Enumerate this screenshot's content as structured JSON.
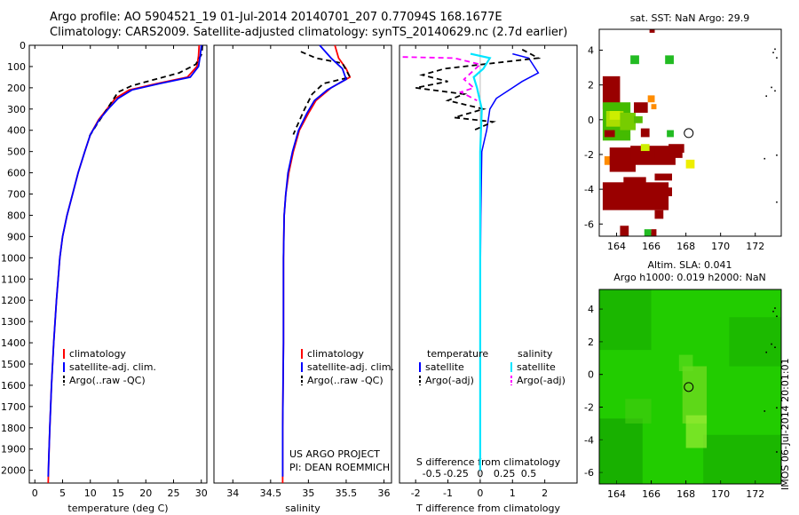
{
  "header": {
    "title_line1": "Argo profile: AO 5904521_19 01-Jul-2014 20140701_207 0.77094S 168.1677E",
    "title_line2": "Climatology: CARS2009. Satellite-adjusted climatology: synTS_20140629.nc (2.7d earlier)"
  },
  "colors": {
    "climatology": "#ff0000",
    "satellite": "#0000ff",
    "argo": "#000000",
    "satellite_salinity": "#00e5ff",
    "argo_salinity": "#ff00ff",
    "sst_dark": "#990000",
    "sst_mid": "#ff8c00",
    "sst_light": "#ccee00",
    "sla_bg": "#22cc00"
  },
  "chart_data": [
    {
      "id": "temperature",
      "type": "line",
      "xlabel": "temperature (deg C)",
      "ylabel": "",
      "xlim": [
        -1,
        31
      ],
      "ylim": [
        2060,
        0
      ],
      "xticks": [
        "0",
        "5",
        "10",
        "15",
        "20",
        "25",
        "30"
      ],
      "xtick_values": [
        0,
        5,
        10,
        15,
        20,
        25,
        30
      ],
      "yticks": [
        "0",
        "100",
        "200",
        "300",
        "400",
        "500",
        "600",
        "700",
        "800",
        "900",
        "1000",
        "1100",
        "1200",
        "1300",
        "1400",
        "1500",
        "1600",
        "1700",
        "1800",
        "1900",
        "2000"
      ],
      "ytick_values": [
        0,
        100,
        200,
        300,
        400,
        500,
        600,
        700,
        800,
        900,
        1000,
        1100,
        1200,
        1300,
        1400,
        1500,
        1600,
        1700,
        1800,
        1900,
        2000
      ],
      "legend": [
        "climatology",
        "satellite-adj. clim.",
        "Argo(..raw -QC)"
      ],
      "series": [
        {
          "name": "climatology",
          "points": [
            [
              29.6,
              0
            ],
            [
              29.5,
              50
            ],
            [
              29.2,
              100
            ],
            [
              27.5,
              150
            ],
            [
              22,
              180
            ],
            [
              17,
              210
            ],
            [
              14.5,
              250
            ],
            [
              13,
              300
            ],
            [
              11.5,
              350
            ],
            [
              10,
              420
            ],
            [
              9,
              500
            ],
            [
              7.8,
              600
            ],
            [
              6.8,
              700
            ],
            [
              5.8,
              800
            ],
            [
              5,
              900
            ],
            [
              4.5,
              1000
            ],
            [
              3.9,
              1200
            ],
            [
              3.4,
              1400
            ],
            [
              3,
              1600
            ],
            [
              2.7,
              1800
            ],
            [
              2.5,
              1950
            ],
            [
              2.4,
              2060
            ]
          ]
        },
        {
          "name": "satellite-adj. clim.",
          "points": [
            [
              30,
              0
            ],
            [
              29.8,
              50
            ],
            [
              29.5,
              100
            ],
            [
              28,
              150
            ],
            [
              22.5,
              180
            ],
            [
              17.5,
              210
            ],
            [
              15,
              250
            ],
            [
              13.2,
              300
            ],
            [
              11.6,
              350
            ],
            [
              10,
              420
            ],
            [
              9,
              500
            ],
            [
              7.8,
              600
            ],
            [
              6.8,
              700
            ],
            [
              5.8,
              800
            ],
            [
              5,
              900
            ],
            [
              4.5,
              1000
            ],
            [
              3.9,
              1200
            ],
            [
              3.4,
              1400
            ],
            [
              3,
              1600
            ],
            [
              2.7,
              1800
            ],
            [
              2.5,
              1950
            ],
            [
              2.4,
              2030
            ]
          ]
        },
        {
          "name": "Argo(..raw -QC)",
          "points": [
            [
              30.2,
              0
            ],
            [
              30.1,
              40
            ],
            [
              29,
              90
            ],
            [
              26,
              130
            ],
            [
              21,
              165
            ],
            [
              17.5,
              190
            ],
            [
              15,
              220
            ],
            [
              14,
              260
            ],
            [
              12.5,
              320
            ],
            [
              11,
              380
            ],
            [
              9.8,
              430
            ]
          ]
        }
      ]
    },
    {
      "id": "salinity",
      "type": "line",
      "xlabel": "salinity",
      "xlim": [
        33.75,
        36.1
      ],
      "ylim": [
        2060,
        0
      ],
      "xticks": [
        "34",
        "34.5",
        "35",
        "35.5",
        "36"
      ],
      "xtick_values": [
        34,
        34.5,
        35,
        35.5,
        36
      ],
      "legend": [
        "climatology",
        "satellite-adj. clim.",
        "Argo(..raw -QC)"
      ],
      "annotation": [
        "US ARGO PROJECT",
        "PI: DEAN ROEMMICH"
      ],
      "series": [
        {
          "name": "climatology",
          "points": [
            [
              35.35,
              0
            ],
            [
              35.4,
              60
            ],
            [
              35.5,
              110
            ],
            [
              35.55,
              150
            ],
            [
              35.3,
              200
            ],
            [
              35.1,
              260
            ],
            [
              35,
              320
            ],
            [
              34.88,
              400
            ],
            [
              34.8,
              500
            ],
            [
              34.74,
              600
            ],
            [
              34.7,
              700
            ],
            [
              34.68,
              800
            ],
            [
              34.67,
              1000
            ],
            [
              34.67,
              1400
            ],
            [
              34.66,
              1800
            ],
            [
              34.66,
              2060
            ]
          ]
        },
        {
          "name": "satellite-adj. clim.",
          "points": [
            [
              35.15,
              0
            ],
            [
              35.3,
              60
            ],
            [
              35.45,
              110
            ],
            [
              35.5,
              160
            ],
            [
              35.25,
              210
            ],
            [
              35.08,
              260
            ],
            [
              34.98,
              320
            ],
            [
              34.87,
              400
            ],
            [
              34.79,
              500
            ],
            [
              34.73,
              600
            ],
            [
              34.7,
              700
            ],
            [
              34.68,
              800
            ],
            [
              34.67,
              1000
            ],
            [
              34.67,
              1400
            ],
            [
              34.66,
              1800
            ],
            [
              34.66,
              2030
            ]
          ]
        },
        {
          "name": "Argo(..raw -QC)",
          "points": [
            [
              34.9,
              30
            ],
            [
              35.1,
              60
            ],
            [
              35.45,
              85
            ],
            [
              35.55,
              150
            ],
            [
              35.2,
              180
            ],
            [
              35.05,
              230
            ],
            [
              34.95,
              300
            ],
            [
              34.85,
              380
            ],
            [
              34.8,
              420
            ]
          ]
        }
      ]
    },
    {
      "id": "differences",
      "type": "line",
      "xlabel": "T difference from climatology",
      "xlabel2": "S difference from climatology",
      "xlim": [
        -2.5,
        3
      ],
      "ylim": [
        2060,
        0
      ],
      "xticks": [
        "-2",
        "-1",
        "0",
        "1",
        "2"
      ],
      "xtick_values": [
        -2,
        -1,
        0,
        1,
        2
      ],
      "xticks2": [
        "-0.5",
        "-0.25",
        "0",
        "0.25",
        "0.5"
      ],
      "xtick2_values": [
        -1.5,
        -0.75,
        0,
        0.75,
        1.5
      ],
      "legend_left_title": "temperature",
      "legend_right_title": "salinity",
      "legend": [
        "satellite",
        "Argo(-adj)",
        "satellite",
        "Argo(-adj)"
      ],
      "series": [
        {
          "name": "T satellite",
          "points": [
            [
              1,
              40
            ],
            [
              1.5,
              60
            ],
            [
              1.8,
              130
            ],
            [
              1.3,
              170
            ],
            [
              1,
              200
            ],
            [
              0.5,
              250
            ],
            [
              0.3,
              300
            ],
            [
              0.2,
              400
            ],
            [
              0.05,
              500
            ],
            [
              0.02,
              800
            ],
            [
              0,
              1200
            ],
            [
              0,
              2000
            ]
          ]
        },
        {
          "name": "T Argo(-adj)",
          "points": [
            [
              1.3,
              20
            ],
            [
              1.8,
              60
            ],
            [
              -1.1,
              110
            ],
            [
              -1.8,
              140
            ],
            [
              -1,
              170
            ],
            [
              -2,
              200
            ],
            [
              -0.5,
              230
            ],
            [
              -1,
              260
            ],
            [
              0.1,
              300
            ],
            [
              -0.8,
              340
            ],
            [
              0.4,
              360
            ],
            [
              -0.2,
              400
            ]
          ]
        },
        {
          "name": "S satellite",
          "points": [
            [
              -0.3,
              40
            ],
            [
              0.3,
              60
            ],
            [
              0.1,
              110
            ],
            [
              -0.2,
              150
            ],
            [
              -0.1,
              200
            ],
            [
              0.05,
              300
            ],
            [
              0,
              500
            ],
            [
              0,
              1000
            ],
            [
              0,
              2000
            ]
          ]
        },
        {
          "name": "S Argo(-adj)",
          "points": [
            [
              -2.4,
              55
            ],
            [
              -0.8,
              60
            ],
            [
              0,
              90
            ],
            [
              -0.5,
              160
            ],
            [
              -0.2,
              200
            ],
            [
              -0.6,
              220
            ],
            [
              -0.1,
              260
            ]
          ]
        }
      ]
    },
    {
      "id": "sst_map",
      "type": "heatmap",
      "title": "sat. SST: NaN Argo: 29.9",
      "xlim": [
        163,
        173.5
      ],
      "ylim": [
        -6.7,
        5.2
      ],
      "xticks": [
        "164",
        "166",
        "168",
        "170",
        "172"
      ],
      "xtick_values": [
        164,
        166,
        168,
        170,
        172
      ],
      "yticks": [
        "4",
        "2",
        "0",
        "-2",
        "-4",
        "-6"
      ],
      "ytick_values": [
        4,
        2,
        0,
        -2,
        -4,
        -6
      ],
      "marker": [
        168.16,
        -0.77
      ]
    },
    {
      "id": "sla_map",
      "type": "heatmap",
      "title": "Altim. SLA: 0.041",
      "subtitle": "Argo h1000: 0.019 h2000: NaN",
      "xlim": [
        163,
        173.5
      ],
      "ylim": [
        -6.7,
        5.2
      ],
      "xticks": [
        "164",
        "166",
        "168",
        "170",
        "172"
      ],
      "xtick_values": [
        164,
        166,
        168,
        170,
        172
      ],
      "yticks": [
        "4",
        "2",
        "0",
        "-2",
        "-4",
        "-6"
      ],
      "ytick_values": [
        4,
        2,
        0,
        -2,
        -4,
        -6
      ],
      "marker": [
        168.16,
        -0.77
      ]
    }
  ],
  "watermark": "IMOS 06-Jul-2014 20:01:01"
}
